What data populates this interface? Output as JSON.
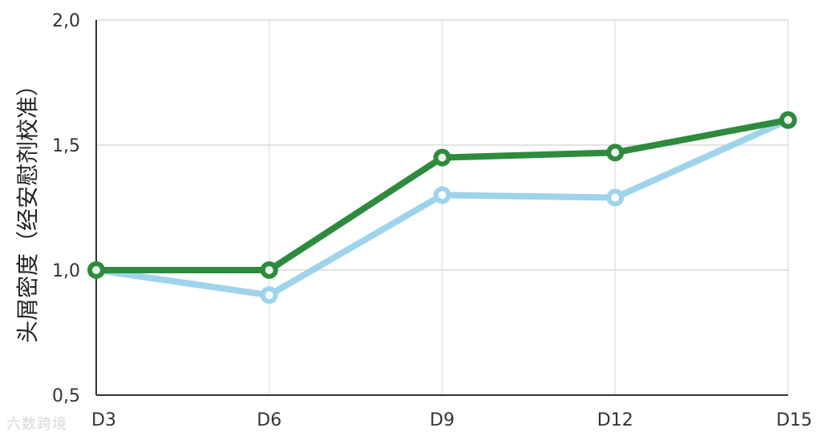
{
  "chart_data": {
    "type": "line",
    "title": "",
    "xlabel": "",
    "ylabel": "头屑密度（经安慰剂校准）",
    "categories": [
      "D3",
      "D6",
      "D9",
      "D12",
      "D15"
    ],
    "ylim": [
      0.5,
      2.0
    ],
    "yticks": [
      "0,5",
      "1,0",
      "1,5",
      "2,0"
    ],
    "yticks_values": [
      0.5,
      1.0,
      1.5,
      2.0
    ],
    "grid": true,
    "legend": "none",
    "series": [
      {
        "values": [
          1.0,
          1.0,
          1.45,
          1.47,
          1.6
        ],
        "color": "#2e8b3e"
      },
      {
        "values": [
          1.0,
          0.9,
          1.3,
          1.29,
          1.6
        ],
        "color": "#9fd3ec"
      }
    ]
  },
  "watermark": "六数跨境"
}
